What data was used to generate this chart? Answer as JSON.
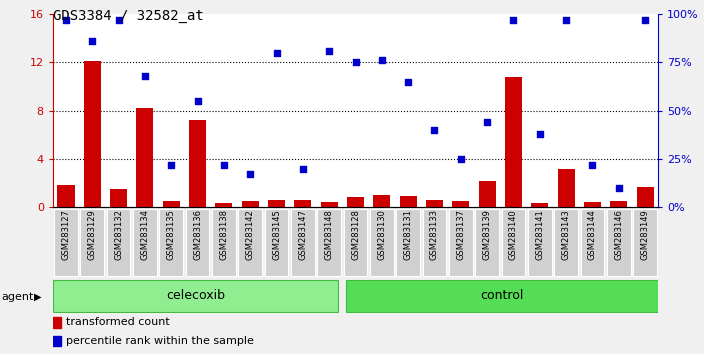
{
  "title": "GDS3384 / 32582_at",
  "samples": [
    "GSM283127",
    "GSM283129",
    "GSM283132",
    "GSM283134",
    "GSM283135",
    "GSM283136",
    "GSM283138",
    "GSM283142",
    "GSM283145",
    "GSM283147",
    "GSM283148",
    "GSM283128",
    "GSM283130",
    "GSM283131",
    "GSM283133",
    "GSM283137",
    "GSM283139",
    "GSM283140",
    "GSM283141",
    "GSM283143",
    "GSM283144",
    "GSM283146",
    "GSM283149"
  ],
  "transformed_count": [
    1.8,
    12.1,
    1.5,
    8.2,
    0.5,
    7.2,
    0.3,
    0.5,
    0.6,
    0.6,
    0.4,
    0.8,
    1.0,
    0.9,
    0.6,
    0.5,
    2.2,
    10.8,
    0.3,
    3.2,
    0.4,
    0.5,
    1.7
  ],
  "percentile_rank": [
    97,
    86,
    97,
    68,
    22,
    55,
    22,
    17,
    80,
    20,
    81,
    75,
    76,
    65,
    40,
    25,
    44,
    97,
    38,
    97,
    22,
    10,
    97
  ],
  "celecoxib_count": 11,
  "total_count": 23,
  "ylim_left": [
    0,
    16
  ],
  "ylim_right": [
    0,
    100
  ],
  "yticks_left": [
    0,
    4,
    8,
    12,
    16
  ],
  "yticks_right": [
    0,
    25,
    50,
    75,
    100
  ],
  "ytick_labels_right": [
    "0%",
    "25%",
    "50%",
    "75%",
    "100%"
  ],
  "bar_color": "#cc0000",
  "dot_color": "#0000cc",
  "celecoxib_color": "#90ee90",
  "control_color": "#55dd55",
  "sample_bg_color": "#d0d0d0",
  "fig_bg_color": "#f0f0f0",
  "plot_bg_color": "#ffffff",
  "legend_bar_label": "transformed count",
  "legend_dot_label": "percentile rank within the sample",
  "celecoxib_label": "celecoxib",
  "control_label": "control",
  "agent_label": "agent"
}
